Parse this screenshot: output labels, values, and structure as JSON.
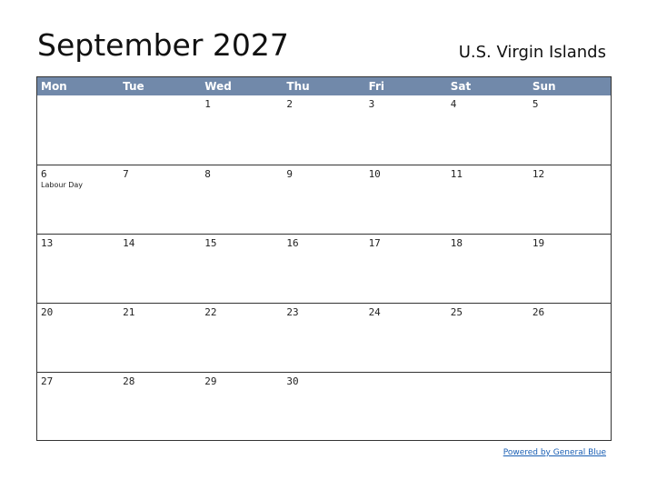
{
  "header": {
    "title": "September 2027",
    "region": "U.S. Virgin Islands"
  },
  "weekdays": [
    "Mon",
    "Tue",
    "Wed",
    "Thu",
    "Fri",
    "Sat",
    "Sun"
  ],
  "weeks": [
    [
      null,
      null,
      {
        "day": 1
      },
      {
        "day": 2
      },
      {
        "day": 3
      },
      {
        "day": 4
      },
      {
        "day": 5
      }
    ],
    [
      {
        "day": 6,
        "holiday": "Labour Day"
      },
      {
        "day": 7
      },
      {
        "day": 8
      },
      {
        "day": 9
      },
      {
        "day": 10
      },
      {
        "day": 11
      },
      {
        "day": 12
      }
    ],
    [
      {
        "day": 13
      },
      {
        "day": 14
      },
      {
        "day": 15
      },
      {
        "day": 16
      },
      {
        "day": 17
      },
      {
        "day": 18
      },
      {
        "day": 19
      }
    ],
    [
      {
        "day": 20
      },
      {
        "day": 21
      },
      {
        "day": 22
      },
      {
        "day": 23
      },
      {
        "day": 24
      },
      {
        "day": 25
      },
      {
        "day": 26
      }
    ],
    [
      {
        "day": 27
      },
      {
        "day": 28
      },
      {
        "day": 29
      },
      {
        "day": 30
      },
      null,
      null,
      null
    ]
  ],
  "footer": {
    "link": "Powered by General Blue"
  }
}
